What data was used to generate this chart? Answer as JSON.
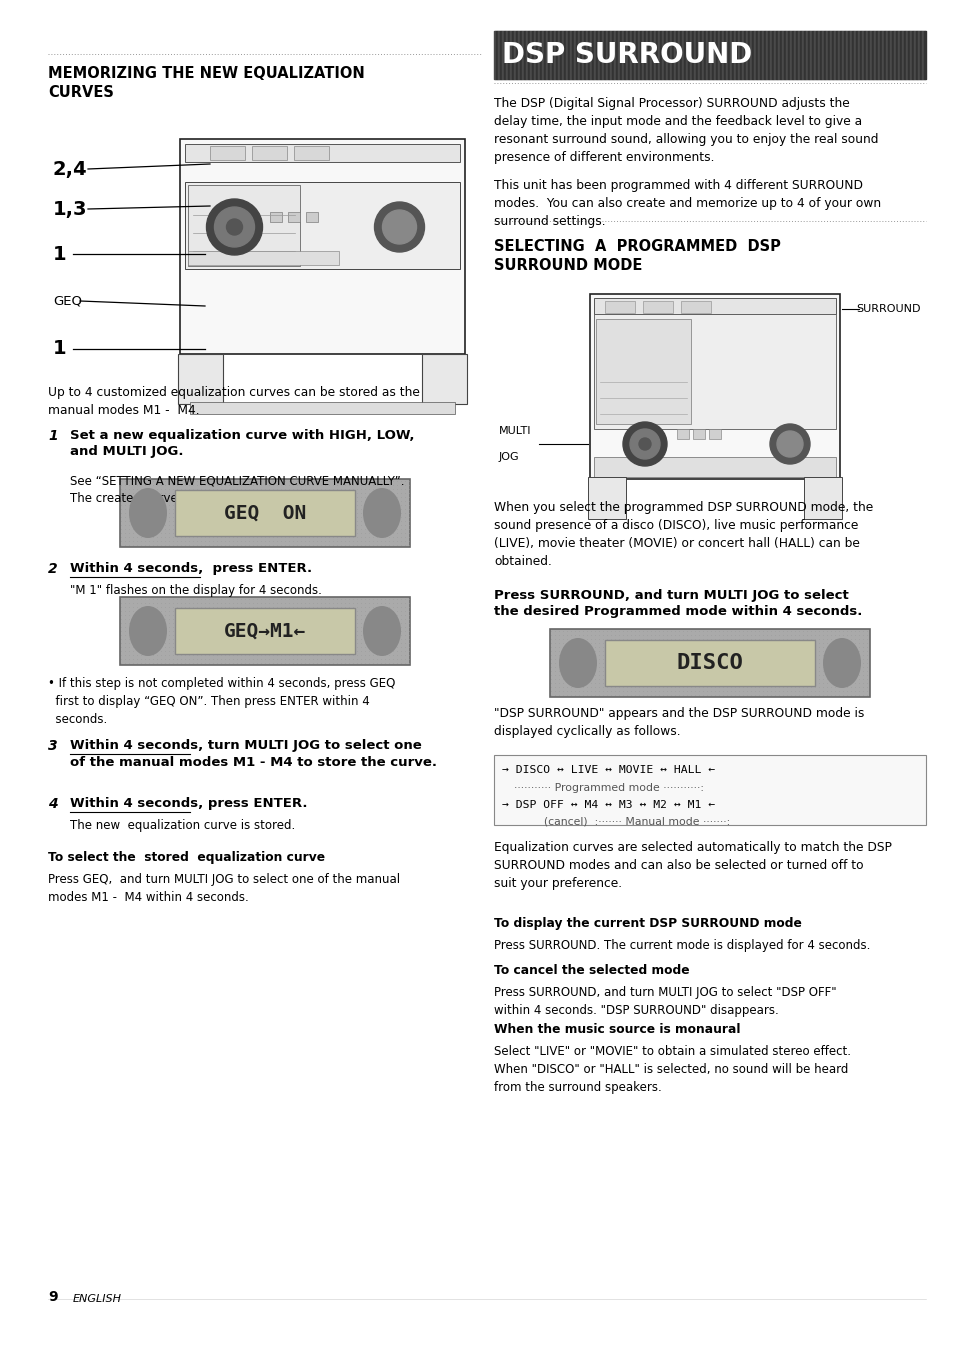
{
  "page_bg": "#ffffff",
  "text_color": "#000000",
  "left_section_title": "MEMORIZING THE NEW EQUALIZATION\nCURVES",
  "left_intro": "Up to 4 customized equalization curves can be stored as the\nmanual modes M1 -  M4.",
  "step1_bold": "Set a new equalization curve with HIGH, LOW,\nand MULTI JOG.",
  "step1_detail": "See “SETTING A NEW EQUALIZATION CURVE MANUALLY”.\nThe created curve is displayed for 4 seconds.",
  "step2_bold": "Within 4 seconds,  press ENTER.",
  "step2_detail": "\"M 1\" flashes on the display for 4 seconds.",
  "step2_bullet": "• If this step is not completed within 4 seconds, press GEQ\n  first to display \"GEQ ON\". Then press ENTER within 4\n  seconds.",
  "step3_bold": "Within 4 seconds, turn MULTI JOG to select one\nof the manual modes M1 - M4 to store the curve.",
  "step4_bold": "Within 4 seconds, press ENTER.",
  "step4_detail": "The new  equalization curve is stored.",
  "store_title": "To select the  stored  equalization curve",
  "store_text": "Press GEQ,  and turn MULTI JOG to select one of the manual\nmodes M1 -  M4 within 4 seconds.",
  "dsp_banner_text": "DSP SURROUND",
  "dsp_intro1": "The DSP (Digital Signal Processor) SURROUND adjusts the\ndelay time, the input mode and the feedback level to give a\nresonant surround sound, allowing you to enjoy the real sound\npresence of different environments.\nThis unit has been programmed with 4 different SURROUND\nmodes.  You can also create and memorize up to 4 of your own\nsurround settings.",
  "right_section_title": "SELECTING  A  PROGRAMMED  DSP\nSURROUND MODE",
  "when_select": "When you select the programmed DSP SURROUND mode, the\nsound presence of a disco (DISCO), live music performance\n(LIVE), movie theater (MOVIE) or concert hall (HALL) can be\nobtained.",
  "press_surround_bold": "Press SURROUND, and turn MULTI JOG to select\nthe desired Programmed mode within 4 seconds.",
  "dsp_appear": "\"DSP SURROUND\" appears and the DSP SURROUND mode is\ndisplayed cyclically as follows.",
  "eq_curves_text": "Equalization curves are selected automatically to match the DSP\nSURROUND modes and can also be selected or turned off to\nsuit your preference.",
  "display_title": "To display the current DSP SURROUND mode",
  "display_text": "Press SURROUND. The current mode is displayed for 4 seconds.",
  "cancel_title": "To cancel the selected mode",
  "cancel_text": "Press SURROUND, and turn MULTI JOG to select \"DSP OFF\"\nwithin 4 seconds. \"DSP SURROUND\" disappears.",
  "mono_title": "When the music source is monaural",
  "mono_text": "Select \"LIVE\" or \"MOVIE\" to obtain a simulated stereo effect.\nWhen \"DISCO\" or \"HALL\" is selected, no sound will be heard\nfrom the surround speakers.",
  "page_num": "9",
  "page_lang": "ENGLISH"
}
